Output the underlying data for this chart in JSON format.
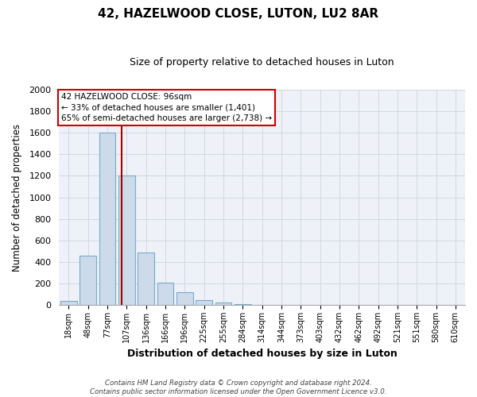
{
  "title": "42, HAZELWOOD CLOSE, LUTON, LU2 8AR",
  "subtitle": "Size of property relative to detached houses in Luton",
  "xlabel": "Distribution of detached houses by size in Luton",
  "ylabel": "Number of detached properties",
  "bar_labels": [
    "18sqm",
    "48sqm",
    "77sqm",
    "107sqm",
    "136sqm",
    "166sqm",
    "196sqm",
    "225sqm",
    "255sqm",
    "284sqm",
    "314sqm",
    "344sqm",
    "373sqm",
    "403sqm",
    "432sqm",
    "462sqm",
    "492sqm",
    "521sqm",
    "551sqm",
    "580sqm",
    "610sqm"
  ],
  "bar_values": [
    35,
    460,
    1600,
    1200,
    490,
    210,
    120,
    45,
    20,
    5,
    0,
    0,
    0,
    0,
    0,
    0,
    0,
    0,
    0,
    0,
    0
  ],
  "bar_color": "#ccdaea",
  "bar_edge_color": "#7aaac8",
  "red_line_x": 2.72,
  "annotation_line1": "42 HAZELWOOD CLOSE: 96sqm",
  "annotation_line2": "← 33% of detached houses are smaller (1,401)",
  "annotation_line3": "65% of semi-detached houses are larger (2,738) →",
  "annotation_box_color": "#ffffff",
  "annotation_box_edge_color": "#cc0000",
  "red_line_color": "#aa0000",
  "ylim": [
    0,
    2000
  ],
  "yticks": [
    0,
    200,
    400,
    600,
    800,
    1000,
    1200,
    1400,
    1600,
    1800,
    2000
  ],
  "grid_color": "#d0d8e4",
  "bg_color": "#ffffff",
  "plot_bg_color": "#eef2f8",
  "footer_line1": "Contains HM Land Registry data © Crown copyright and database right 2024.",
  "footer_line2": "Contains public sector information licensed under the Open Government Licence v3.0."
}
